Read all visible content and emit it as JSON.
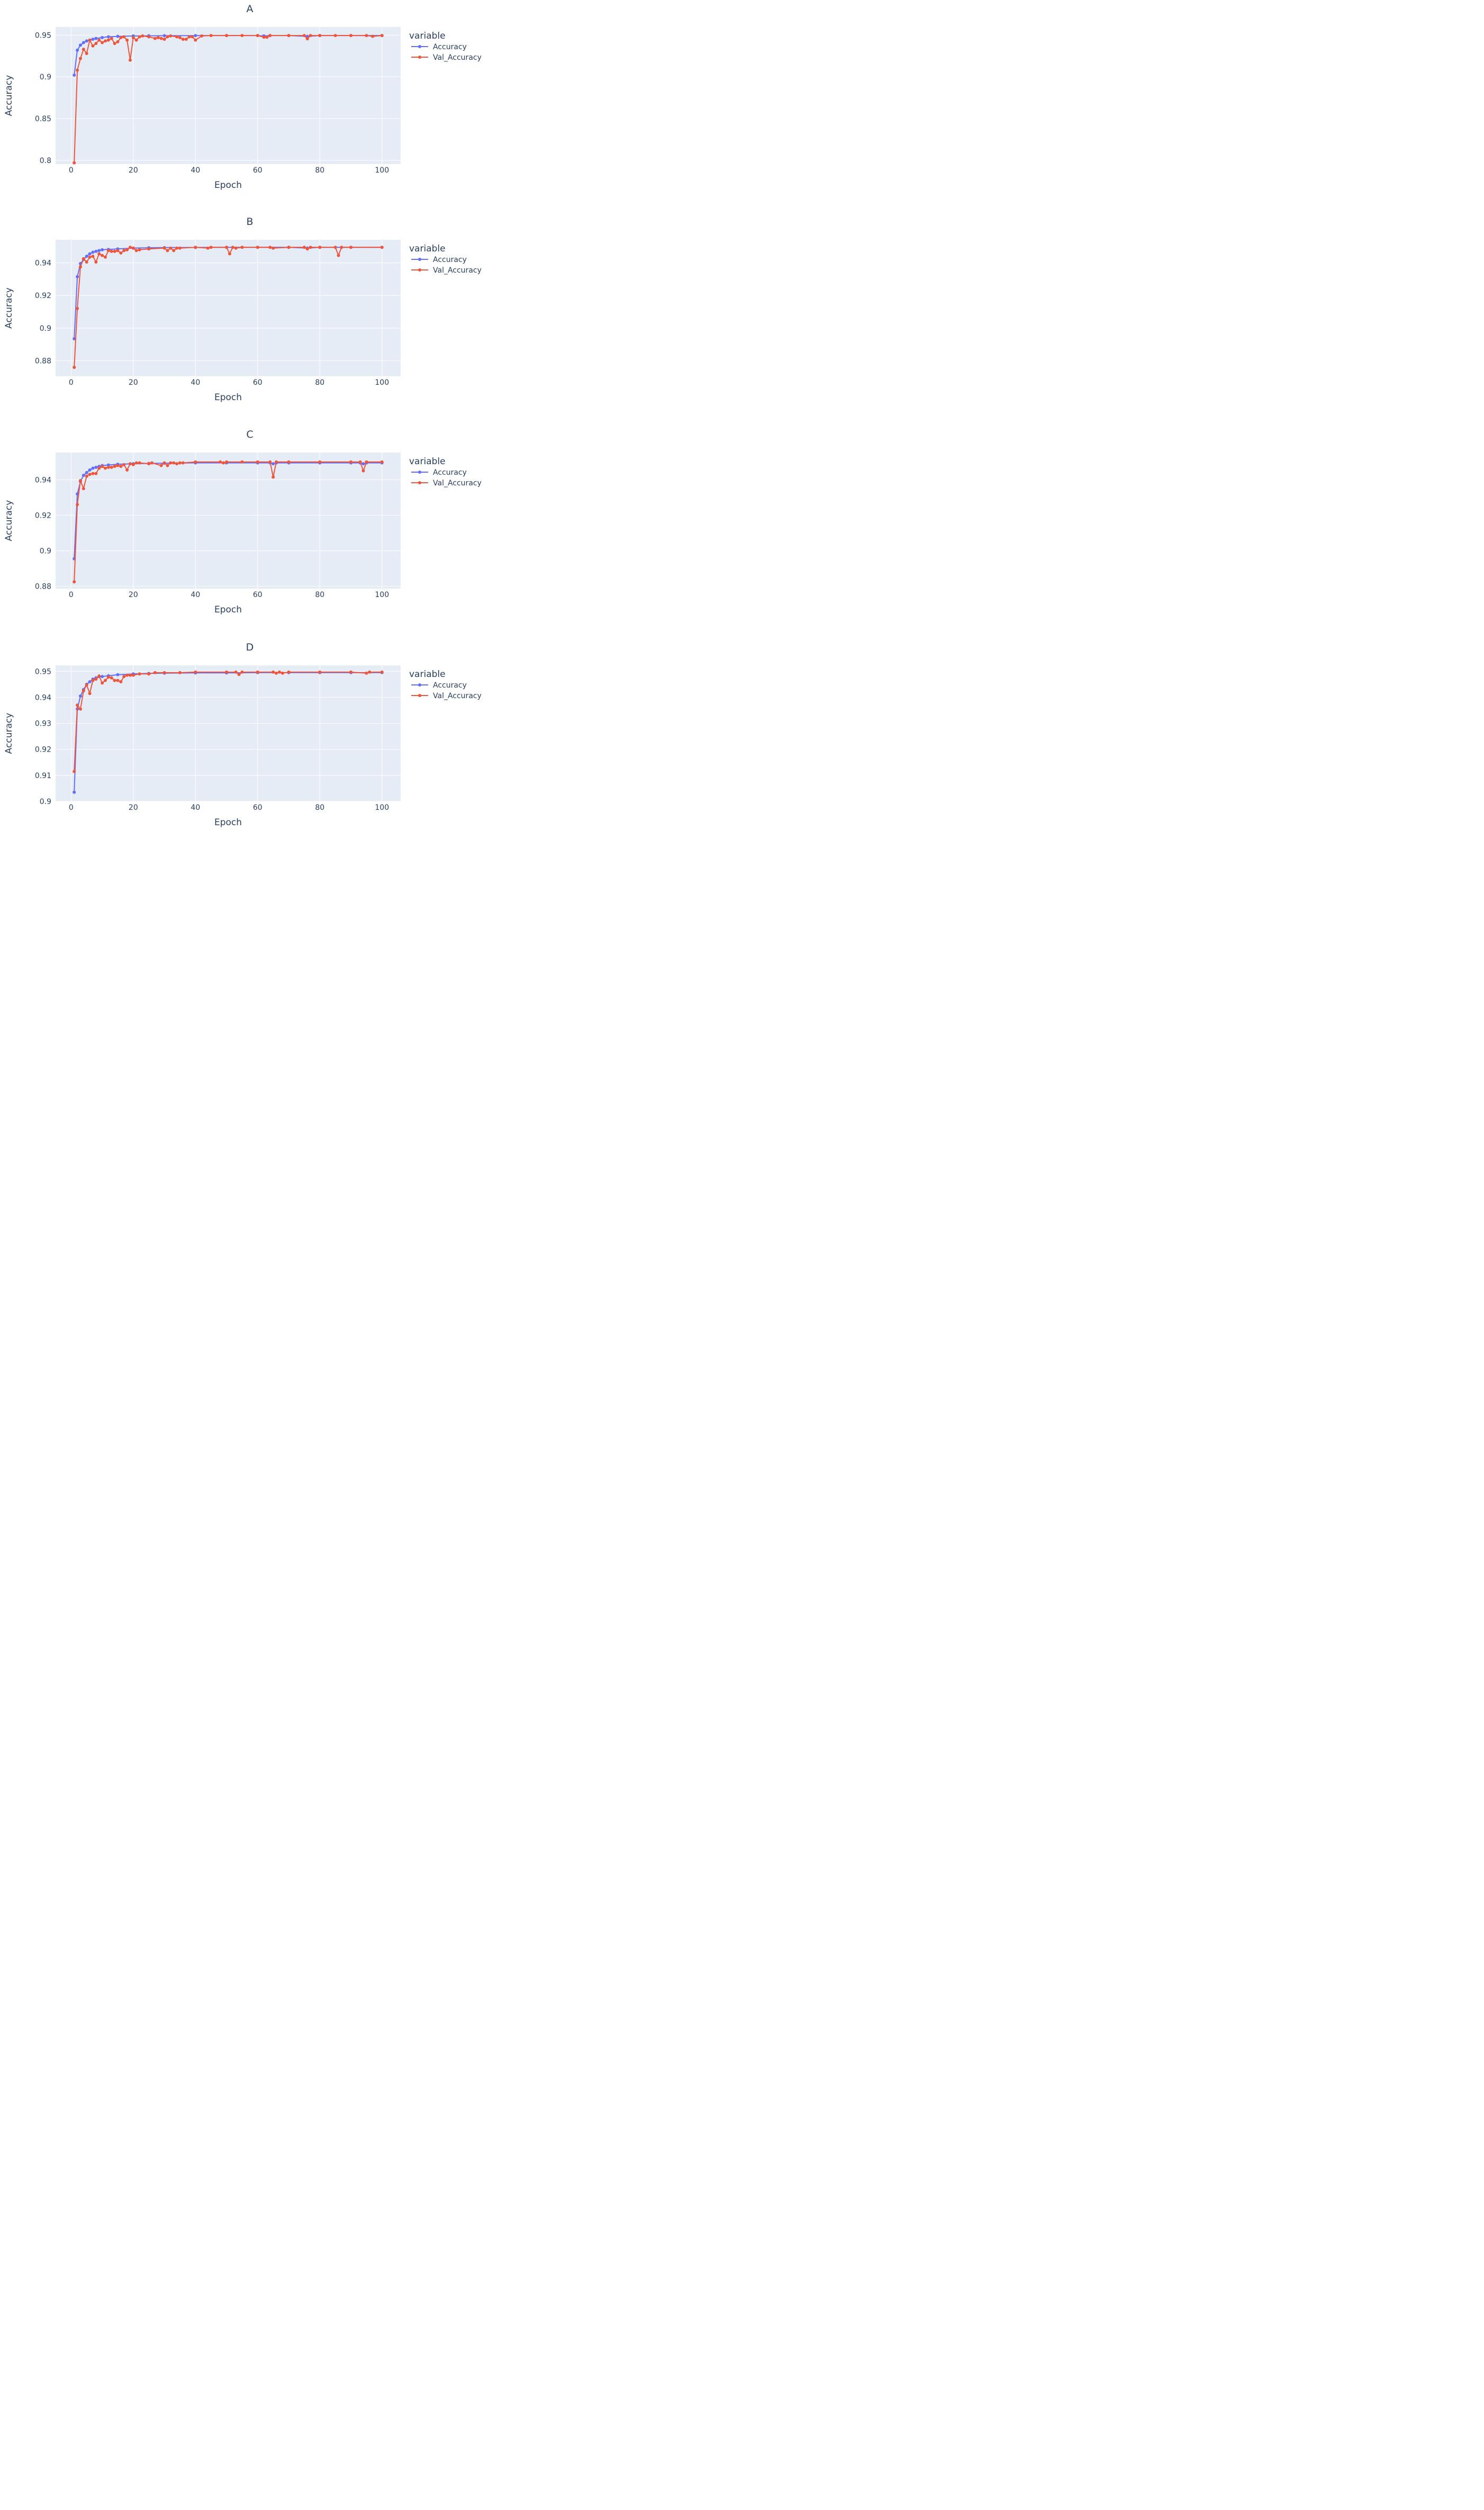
{
  "colors": {
    "accuracy": "#636efa",
    "val_accuracy": "#ef553b",
    "plot_bg": "#e5ecf6",
    "grid": "#ffffff",
    "text": "#2a3f5f"
  },
  "chart_data": [
    {
      "type": "line",
      "title": "A",
      "xlabel": "Epoch",
      "ylabel": "Accuracy",
      "xlim": [
        -5,
        106
      ],
      "ylim": [
        0.7955,
        0.9597
      ],
      "xticks": [
        0,
        20,
        40,
        60,
        80,
        100
      ],
      "xtick_labels": [
        "0",
        "20",
        "40",
        "60",
        "80",
        "100"
      ],
      "yticks": [
        0.8,
        0.85,
        0.9,
        0.95
      ],
      "ytick_labels": [
        "0.8",
        "0.85",
        "0.9",
        "0.95"
      ],
      "legend": {
        "title": "variable",
        "position": "top-right-outside"
      },
      "grid": true,
      "series": [
        {
          "name": "Accuracy",
          "x": [
            1,
            2,
            3,
            4,
            5,
            6,
            7,
            8,
            10,
            12,
            15,
            20,
            25,
            30,
            40,
            50,
            60,
            62,
            64,
            70,
            76,
            80,
            90,
            100
          ],
          "y": [
            0.902,
            0.932,
            0.938,
            0.941,
            0.943,
            0.944,
            0.945,
            0.946,
            0.947,
            0.948,
            0.9485,
            0.949,
            0.9492,
            0.9493,
            0.9494,
            0.9495,
            0.9495,
            0.949,
            0.9495,
            0.9495,
            0.9485,
            0.9495,
            0.9495,
            0.9495
          ]
        },
        {
          "name": "Val_Accuracy",
          "x": [
            1,
            2,
            3,
            4,
            5,
            6,
            7,
            8,
            9,
            10,
            11,
            12,
            13,
            14,
            15,
            16,
            17,
            18,
            19,
            20,
            21,
            22,
            23,
            25,
            27,
            28,
            29,
            30,
            31,
            32,
            34,
            35,
            36,
            37,
            38,
            39,
            40,
            42,
            45,
            50,
            55,
            60,
            62,
            63,
            64,
            70,
            75,
            76,
            77,
            80,
            85,
            90,
            95,
            97,
            100
          ],
          "y": [
            0.797,
            0.908,
            0.922,
            0.933,
            0.928,
            0.944,
            0.937,
            0.94,
            0.944,
            0.941,
            0.943,
            0.944,
            0.946,
            0.94,
            0.942,
            0.947,
            0.948,
            0.944,
            0.92,
            0.947,
            0.944,
            0.948,
            0.949,
            0.948,
            0.946,
            0.947,
            0.946,
            0.945,
            0.948,
            0.949,
            0.948,
            0.947,
            0.945,
            0.945,
            0.948,
            0.948,
            0.944,
            0.949,
            0.9495,
            0.9495,
            0.9495,
            0.9495,
            0.9475,
            0.9475,
            0.9495,
            0.9495,
            0.9495,
            0.9455,
            0.9495,
            0.9495,
            0.9495,
            0.9495,
            0.9495,
            0.9485,
            0.9495
          ]
        }
      ]
    },
    {
      "type": "line",
      "title": "B",
      "xlabel": "Epoch",
      "ylabel": "Accuracy",
      "xlim": [
        -5,
        106
      ],
      "ylim": [
        0.8705,
        0.9541
      ],
      "xticks": [
        0,
        20,
        40,
        60,
        80,
        100
      ],
      "xtick_labels": [
        "0",
        "20",
        "40",
        "60",
        "80",
        "100"
      ],
      "yticks": [
        0.88,
        0.9,
        0.92,
        0.94
      ],
      "ytick_labels": [
        "0.88",
        "0.9",
        "0.92",
        "0.94"
      ],
      "legend": {
        "title": "variable",
        "position": "top-right-outside"
      },
      "grid": true,
      "series": [
        {
          "name": "Accuracy",
          "x": [
            1,
            2,
            3,
            4,
            5,
            6,
            7,
            8,
            9,
            10,
            12,
            15,
            20,
            25,
            30,
            40,
            50,
            60,
            70,
            76,
            80,
            90,
            100
          ],
          "y": [
            0.8935,
            0.9315,
            0.9395,
            0.942,
            0.944,
            0.9455,
            0.9465,
            0.947,
            0.9475,
            0.948,
            0.9482,
            0.9485,
            0.949,
            0.9492,
            0.9493,
            0.9494,
            0.9495,
            0.9495,
            0.9495,
            0.949,
            0.9495,
            0.9495,
            0.9495
          ]
        },
        {
          "name": "Val_Accuracy",
          "x": [
            1,
            2,
            3,
            4,
            5,
            6,
            7,
            8,
            9,
            10,
            11,
            12,
            13,
            14,
            15,
            16,
            17,
            18,
            19,
            20,
            21,
            22,
            25,
            30,
            31,
            32,
            33,
            34,
            35,
            40,
            44,
            45,
            50,
            51,
            52,
            53,
            55,
            60,
            64,
            65,
            70,
            75,
            76,
            77,
            80,
            85,
            86,
            87,
            90,
            100
          ],
          "y": [
            0.876,
            0.912,
            0.9375,
            0.9425,
            0.9405,
            0.9435,
            0.944,
            0.9405,
            0.9455,
            0.9445,
            0.9435,
            0.9475,
            0.947,
            0.947,
            0.9475,
            0.946,
            0.9475,
            0.948,
            0.9495,
            0.949,
            0.9475,
            0.948,
            0.9485,
            0.949,
            0.9475,
            0.949,
            0.9475,
            0.949,
            0.949,
            0.9495,
            0.949,
            0.9495,
            0.9495,
            0.9455,
            0.9495,
            0.949,
            0.9495,
            0.9495,
            0.9495,
            0.949,
            0.9495,
            0.9495,
            0.9485,
            0.9495,
            0.9495,
            0.9495,
            0.9445,
            0.9495,
            0.9495,
            0.9495
          ]
        }
      ]
    },
    {
      "type": "line",
      "title": "C",
      "xlabel": "Epoch",
      "ylabel": "Accuracy",
      "xlim": [
        -5,
        106
      ],
      "ylim": [
        0.8787,
        0.9553
      ],
      "xticks": [
        0,
        20,
        40,
        60,
        80,
        100
      ],
      "xtick_labels": [
        "0",
        "20",
        "40",
        "60",
        "80",
        "100"
      ],
      "yticks": [
        0.88,
        0.9,
        0.92,
        0.94
      ],
      "ytick_labels": [
        "0.88",
        "0.9",
        "0.92",
        "0.94"
      ],
      "legend": {
        "title": "variable",
        "position": "top-right-outside"
      },
      "grid": true,
      "series": [
        {
          "name": "Accuracy",
          "x": [
            1,
            2,
            3,
            4,
            5,
            6,
            7,
            8,
            9,
            10,
            12,
            15,
            20,
            25,
            30,
            40,
            50,
            60,
            64,
            65,
            66,
            70,
            80,
            90,
            93,
            94,
            95,
            100
          ],
          "y": [
            0.8955,
            0.932,
            0.939,
            0.9425,
            0.944,
            0.9455,
            0.9465,
            0.947,
            0.9475,
            0.948,
            0.9483,
            0.9487,
            0.949,
            0.9492,
            0.9493,
            0.9495,
            0.9495,
            0.9495,
            0.9495,
            0.949,
            0.9495,
            0.9495,
            0.9495,
            0.9495,
            0.9495,
            0.949,
            0.9495,
            0.9495
          ]
        },
        {
          "name": "Val_Accuracy",
          "x": [
            1,
            2,
            3,
            4,
            5,
            6,
            7,
            8,
            9,
            10,
            11,
            12,
            13,
            14,
            15,
            16,
            17,
            18,
            19,
            20,
            21,
            22,
            25,
            26,
            29,
            30,
            31,
            32,
            33,
            34,
            35,
            36,
            40,
            48,
            49,
            50,
            55,
            60,
            64,
            65,
            66,
            70,
            80,
            90,
            93,
            94,
            95,
            100
          ],
          "y": [
            0.8825,
            0.926,
            0.9395,
            0.935,
            0.942,
            0.943,
            0.9435,
            0.9435,
            0.9465,
            0.9475,
            0.9465,
            0.947,
            0.947,
            0.9475,
            0.948,
            0.9475,
            0.9485,
            0.9455,
            0.949,
            0.9485,
            0.9495,
            0.9495,
            0.949,
            0.9495,
            0.948,
            0.9495,
            0.948,
            0.9495,
            0.9495,
            0.949,
            0.9495,
            0.9495,
            0.95,
            0.95,
            0.9495,
            0.95,
            0.95,
            0.95,
            0.95,
            0.9415,
            0.95,
            0.95,
            0.95,
            0.95,
            0.95,
            0.945,
            0.95,
            0.95
          ]
        }
      ]
    },
    {
      "type": "line",
      "title": "D",
      "xlabel": "Epoch",
      "ylabel": "Accuracy",
      "xlim": [
        -5,
        106
      ],
      "ylim": [
        0.9,
        0.9523
      ],
      "xticks": [
        0,
        20,
        40,
        60,
        80,
        100
      ],
      "xtick_labels": [
        "0",
        "20",
        "40",
        "60",
        "80",
        "100"
      ],
      "yticks": [
        0.9,
        0.91,
        0.92,
        0.93,
        0.94,
        0.95
      ],
      "ytick_labels": [
        "0.9",
        "0.91",
        "0.92",
        "0.93",
        "0.94",
        "0.95"
      ],
      "legend": {
        "title": "variable",
        "position": "top-right-outside"
      },
      "grid": true,
      "series": [
        {
          "name": "Accuracy",
          "x": [
            1,
            2,
            3,
            4,
            5,
            6,
            7,
            8,
            9,
            10,
            12,
            15,
            20,
            25,
            30,
            40,
            50,
            60,
            70,
            80,
            90,
            100
          ],
          "y": [
            0.9035,
            0.9355,
            0.9405,
            0.943,
            0.945,
            0.946,
            0.947,
            0.9475,
            0.948,
            0.948,
            0.9483,
            0.9487,
            0.949,
            0.9492,
            0.9493,
            0.9494,
            0.9494,
            0.9495,
            0.9495,
            0.9495,
            0.9495,
            0.9495
          ]
        },
        {
          "name": "Val_Accuracy",
          "x": [
            1,
            2,
            3,
            4,
            5,
            6,
            7,
            8,
            9,
            10,
            11,
            12,
            13,
            14,
            15,
            16,
            17,
            18,
            19,
            20,
            22,
            25,
            27,
            30,
            35,
            40,
            50,
            53,
            54,
            55,
            60,
            65,
            66,
            67,
            68,
            70,
            80,
            90,
            95,
            96,
            100
          ],
          "y": [
            0.9115,
            0.937,
            0.9355,
            0.9425,
            0.9448,
            0.9415,
            0.9465,
            0.947,
            0.9482,
            0.9455,
            0.9465,
            0.9478,
            0.9475,
            0.9465,
            0.9465,
            0.946,
            0.948,
            0.9485,
            0.9485,
            0.9485,
            0.949,
            0.949,
            0.9495,
            0.9495,
            0.9495,
            0.9497,
            0.9497,
            0.9497,
            0.9488,
            0.9497,
            0.9497,
            0.9497,
            0.9493,
            0.9497,
            0.9493,
            0.9497,
            0.9497,
            0.9497,
            0.9493,
            0.9497,
            0.9497
          ]
        }
      ]
    }
  ]
}
